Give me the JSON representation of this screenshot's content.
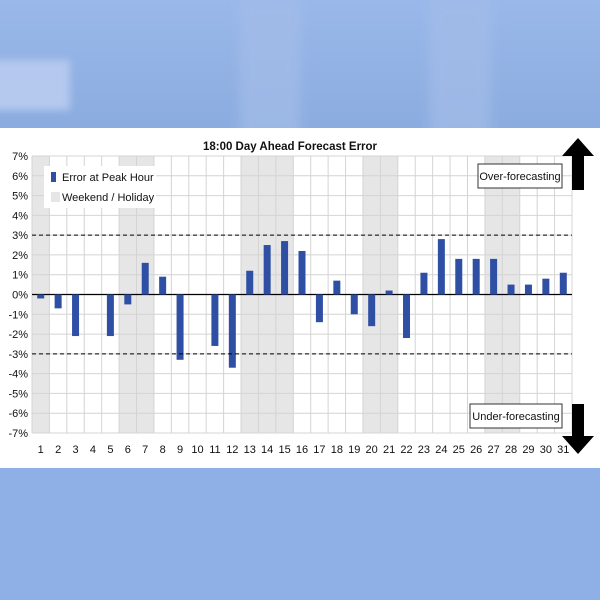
{
  "chart_data": {
    "type": "bar",
    "title": "18:00 Day Ahead Forecast Error",
    "categories": [
      "1",
      "2",
      "3",
      "4",
      "5",
      "6",
      "7",
      "8",
      "9",
      "10",
      "11",
      "12",
      "13",
      "14",
      "15",
      "16",
      "17",
      "18",
      "19",
      "20",
      "21",
      "22",
      "23",
      "24",
      "25",
      "26",
      "27",
      "28",
      "29",
      "30",
      "31"
    ],
    "series": [
      {
        "name": "Error at Peak Hour",
        "values": [
          -0.2,
          -0.7,
          -2.1,
          0,
          -2.1,
          -0.5,
          1.6,
          0.9,
          -3.3,
          0,
          -2.6,
          -3.7,
          1.2,
          2.5,
          2.7,
          2.2,
          -1.4,
          0.7,
          -1.0,
          -1.6,
          0.2,
          -2.2,
          1.1,
          2.8,
          1.8,
          1.8,
          1.8,
          0.5,
          0.5,
          0.8,
          1.1
        ]
      }
    ],
    "weekend_holiday_days": [
      1,
      6,
      7,
      13,
      14,
      15,
      20,
      21,
      27,
      28
    ],
    "weekend_label": "Weekend / Holiday",
    "ytick_labels": [
      "7%",
      "6%",
      "5%",
      "4%",
      "3%",
      "2%",
      "1%",
      "0%",
      "-1%",
      "-2%",
      "-3%",
      "-4%",
      "-5%",
      "-6%",
      "-7%"
    ],
    "ylim": [
      -7,
      7
    ],
    "threshold_lines": [
      3,
      -3
    ],
    "annotations": {
      "over": "Over-forecasting",
      "under": "Under-forecasting"
    },
    "legend_position": "top-left",
    "grid": true,
    "colors": {
      "bar": "#2e4fa3",
      "shade": "#e6e6e6",
      "grid": "#d4d4d4"
    }
  }
}
